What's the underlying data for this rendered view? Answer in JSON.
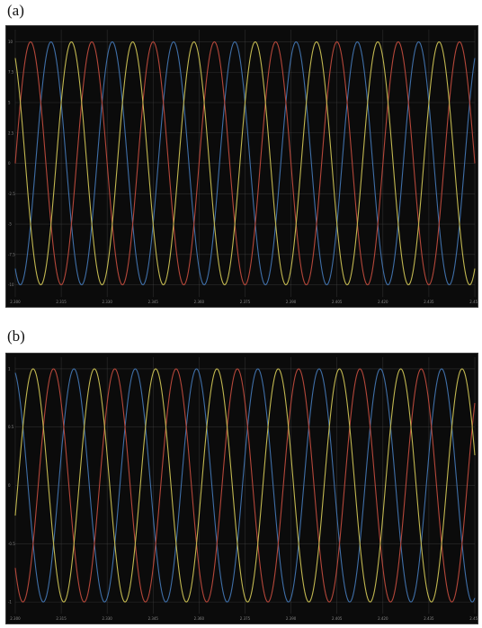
{
  "panels": [
    {
      "label": "(a)"
    },
    {
      "label": "(b)"
    }
  ],
  "chart_data": [
    {
      "type": "line",
      "title": "",
      "xlabel": "",
      "ylabel": "",
      "grid": true,
      "legend": "none",
      "background": "#0b0b0b",
      "xlim": [
        2.3,
        2.45
      ],
      "ylim": [
        -11,
        11
      ],
      "x_ticks": [
        2.3,
        2.315,
        2.33,
        2.345,
        2.36,
        2.375,
        2.39,
        2.405,
        2.42,
        2.435,
        2.45
      ],
      "y_ticks": [
        10,
        7.5,
        5,
        2.5,
        0,
        -2.5,
        -5,
        -7.5,
        -10
      ],
      "x_tick_labels": [
        "2.300",
        "2.315",
        "2.330",
        "2.345",
        "2.360",
        "2.375",
        "2.390",
        "2.405",
        "2.420",
        "2.435",
        "2.450"
      ],
      "y_tick_labels": [
        "10",
        "7.5",
        "5",
        "2.5",
        "0",
        "-2.5",
        "-5",
        "-7.5",
        "-10"
      ],
      "series": [
        {
          "color": "#3f6fa8",
          "amplitude": 10,
          "frequency": 50,
          "phase_deg": 240
        },
        {
          "color": "#b5473a",
          "amplitude": 10,
          "frequency": 50,
          "phase_deg": 0
        },
        {
          "color": "#c2b850",
          "amplitude": 10,
          "frequency": 50,
          "phase_deg": 120
        }
      ]
    },
    {
      "type": "line",
      "title": "",
      "xlabel": "",
      "ylabel": "",
      "grid": true,
      "legend": "none",
      "background": "#0b0b0b",
      "xlim": [
        2.3,
        2.45
      ],
      "ylim": [
        -1.1,
        1.1
      ],
      "x_ticks": [
        2.3,
        2.315,
        2.33,
        2.345,
        2.36,
        2.375,
        2.39,
        2.405,
        2.42,
        2.435,
        2.45
      ],
      "y_ticks": [
        1,
        0.5,
        0,
        -0.5,
        -1
      ],
      "x_tick_labels": [
        "2.300",
        "2.315",
        "2.330",
        "2.345",
        "2.360",
        "2.375",
        "2.390",
        "2.405",
        "2.420",
        "2.435",
        "2.450"
      ],
      "y_tick_labels": [
        "1",
        "0.5",
        "0",
        "-0.5",
        "-1"
      ],
      "series": [
        {
          "color": "#3f6fa8",
          "amplitude": 1,
          "frequency": 50,
          "phase_deg": 105
        },
        {
          "color": "#b5473a",
          "amplitude": 1,
          "frequency": 50,
          "phase_deg": 225
        },
        {
          "color": "#c2b850",
          "amplitude": 1,
          "frequency": 50,
          "phase_deg": 345
        }
      ]
    }
  ]
}
